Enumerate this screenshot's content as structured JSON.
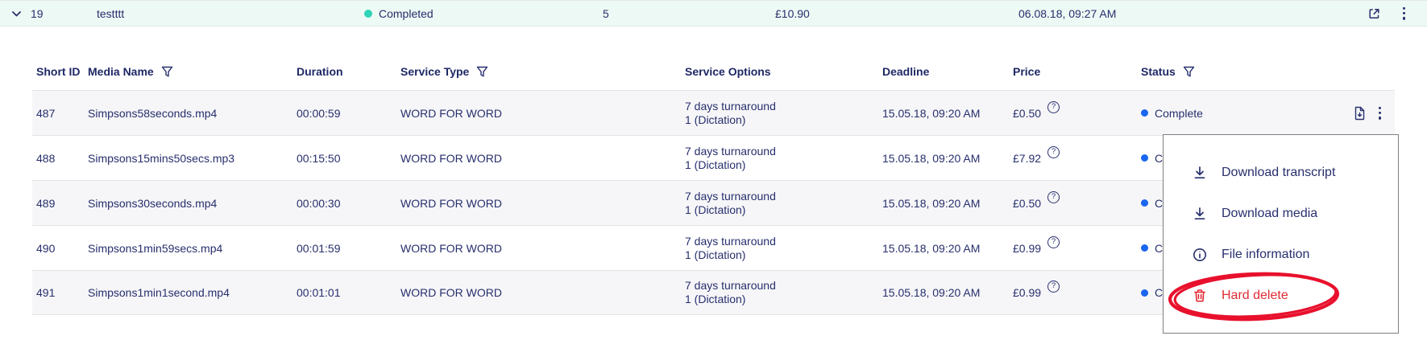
{
  "colors": {
    "accent_navy": "#272f6d",
    "parent_row_bg": "#edf9f4",
    "status_completed_dot": "#2fd3b5",
    "status_complete_dot": "#1a66f0",
    "danger_red": "#e02b35",
    "annotation_red": "#e8112d",
    "shaded_row_bg": "#f6f6f8"
  },
  "parent_row": {
    "id": "19",
    "name": "testttt",
    "status": "Completed",
    "file_count": "5",
    "price": "£10.90",
    "datetime": "06.08.18, 09:27 AM"
  },
  "table": {
    "columns": [
      {
        "label": "Short ID",
        "filter": false
      },
      {
        "label": "Media Name",
        "filter": true
      },
      {
        "label": "Duration",
        "filter": false
      },
      {
        "label": "Service Type",
        "filter": true
      },
      {
        "label": "Service Options",
        "filter": false
      },
      {
        "label": "Deadline",
        "filter": false
      },
      {
        "label": "Price",
        "filter": false
      },
      {
        "label": "Status",
        "filter": true
      }
    ],
    "rows": [
      {
        "short_id": "487",
        "media_name": "Simpsons58seconds.mp4",
        "duration": "00:00:59",
        "service_type": "WORD FOR WORD",
        "option_line1": "7 days turnaround",
        "option_line2": "1 (Dictation)",
        "deadline": "15.05.18, 09:20 AM",
        "price": "£0.50",
        "status": "Complete"
      },
      {
        "short_id": "488",
        "media_name": "Simpsons15mins50secs.mp3",
        "duration": "00:15:50",
        "service_type": "WORD FOR WORD",
        "option_line1": "7 days turnaround",
        "option_line2": "1 (Dictation)",
        "deadline": "15.05.18, 09:20 AM",
        "price": "£7.92",
        "status": "Complete"
      },
      {
        "short_id": "489",
        "media_name": "Simpsons30seconds.mp4",
        "duration": "00:00:30",
        "service_type": "WORD FOR WORD",
        "option_line1": "7 days turnaround",
        "option_line2": "1 (Dictation)",
        "deadline": "15.05.18, 09:20 AM",
        "price": "£0.50",
        "status": "Complete"
      },
      {
        "short_id": "490",
        "media_name": "Simpsons1min59secs.mp4",
        "duration": "00:01:59",
        "service_type": "WORD FOR WORD",
        "option_line1": "7 days turnaround",
        "option_line2": "1 (Dictation)",
        "deadline": "15.05.18, 09:20 AM",
        "price": "£0.99",
        "status": "Complete"
      },
      {
        "short_id": "491",
        "media_name": "Simpsons1min1second.mp4",
        "duration": "00:01:01",
        "service_type": "WORD FOR WORD",
        "option_line1": "7 days turnaround",
        "option_line2": "1 (Dictation)",
        "deadline": "15.05.18, 09:20 AM",
        "price": "£0.99",
        "status": "Complete"
      }
    ],
    "help_icon_symbol": "?"
  },
  "context_menu": {
    "items": [
      {
        "label": "Download transcript",
        "icon": "download-icon"
      },
      {
        "label": "Download media",
        "icon": "download-icon"
      },
      {
        "label": "File information",
        "icon": "info-icon"
      },
      {
        "label": "Hard delete",
        "icon": "trash-icon",
        "danger": true
      }
    ]
  },
  "annotation": {
    "type": "hand-drawn-ellipse",
    "target": "Hard delete",
    "color": "#e8112d"
  }
}
